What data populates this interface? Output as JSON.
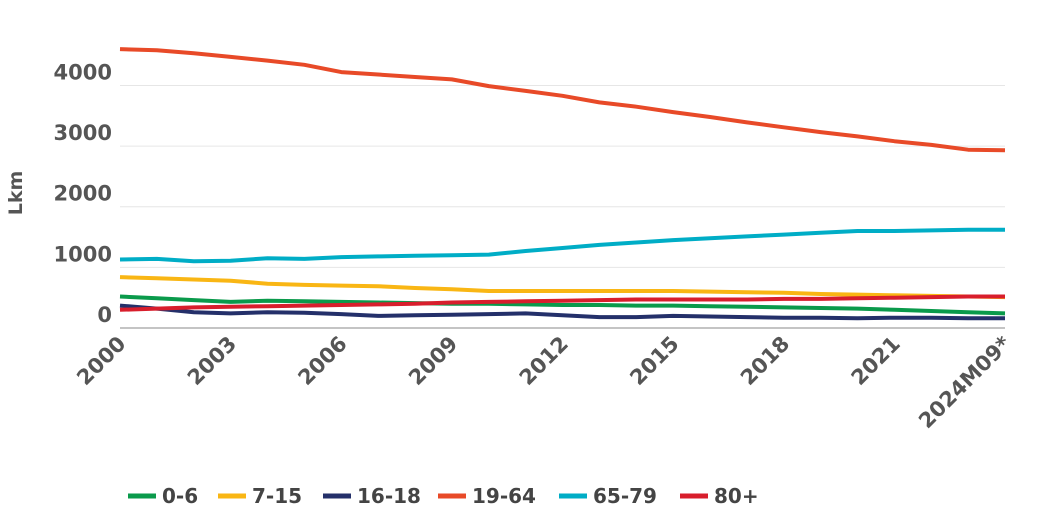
{
  "chart_data": {
    "type": "line",
    "ylabel": "Lkm",
    "xlabel": "",
    "ylim": [
      0,
      4700
    ],
    "yticks": [
      0,
      1000,
      2000,
      3000,
      4000
    ],
    "x": [
      "2000",
      "2001",
      "2002",
      "2003",
      "2004",
      "2005",
      "2006",
      "2007",
      "2008",
      "2009",
      "2010",
      "2011",
      "2012",
      "2013",
      "2014",
      "2015",
      "2016",
      "2017",
      "2018",
      "2019",
      "2020",
      "2021",
      "2022",
      "2023",
      "2024M09*"
    ],
    "xtick_labels": [
      "2000",
      "2003",
      "2006",
      "2009",
      "2012",
      "2015",
      "2018",
      "2021",
      "2024M09*"
    ],
    "legend_position": "bottom",
    "grid": true,
    "series": [
      {
        "name": "0-6",
        "color": "#0a9a4b",
        "values": [
          520,
          490,
          460,
          430,
          450,
          440,
          430,
          420,
          410,
          400,
          400,
          390,
          380,
          380,
          370,
          370,
          360,
          350,
          340,
          330,
          320,
          300,
          280,
          260,
          240
        ]
      },
      {
        "name": "7-15",
        "color": "#f9b614",
        "values": [
          840,
          820,
          800,
          780,
          730,
          710,
          700,
          690,
          660,
          640,
          610,
          610,
          610,
          610,
          610,
          610,
          600,
          590,
          580,
          560,
          550,
          540,
          530,
          520,
          510
        ]
      },
      {
        "name": "16-18",
        "color": "#24306a",
        "values": [
          370,
          320,
          260,
          240,
          260,
          250,
          230,
          200,
          210,
          220,
          230,
          240,
          210,
          180,
          180,
          200,
          190,
          180,
          170,
          170,
          160,
          170,
          170,
          160,
          160
        ]
      },
      {
        "name": "19-64",
        "color": "#e84a28",
        "values": [
          4600,
          4580,
          4530,
          4470,
          4410,
          4340,
          4220,
          4180,
          4140,
          4100,
          3990,
          3910,
          3830,
          3720,
          3650,
          3560,
          3480,
          3390,
          3310,
          3230,
          3160,
          3080,
          3020,
          2940,
          2930
        ]
      },
      {
        "name": "65-79",
        "color": "#00adc6",
        "values": [
          1130,
          1140,
          1100,
          1110,
          1150,
          1140,
          1170,
          1180,
          1190,
          1200,
          1210,
          1270,
          1320,
          1370,
          1410,
          1450,
          1480,
          1510,
          1540,
          1570,
          1600,
          1600,
          1610,
          1620,
          1620
        ]
      },
      {
        "name": "80+",
        "color": "#d81e2c",
        "values": [
          300,
          320,
          340,
          350,
          360,
          370,
          380,
          390,
          400,
          420,
          430,
          440,
          450,
          460,
          470,
          470,
          470,
          470,
          480,
          480,
          490,
          500,
          510,
          520,
          520
        ]
      }
    ]
  }
}
